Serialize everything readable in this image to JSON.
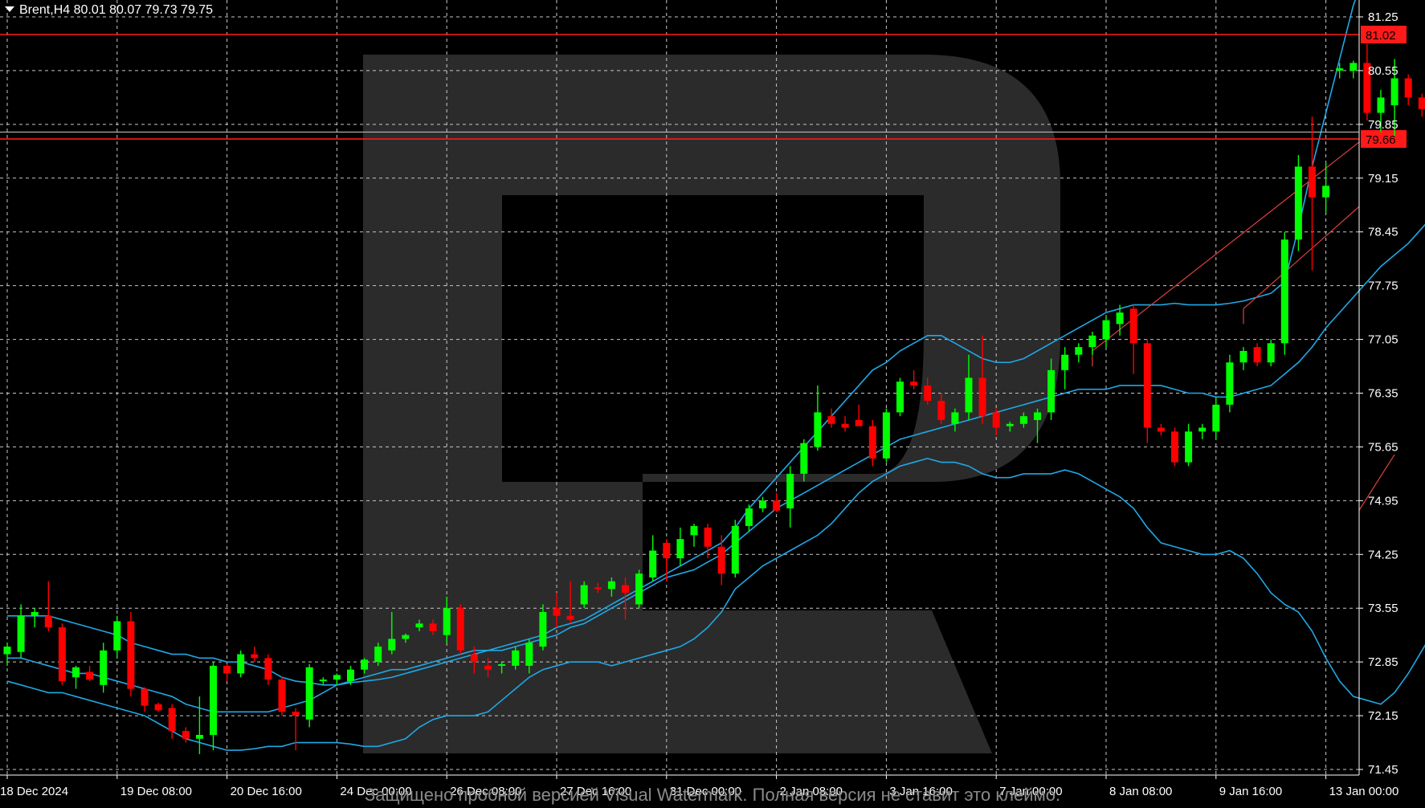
{
  "header": {
    "triangle_icon": "triangle-down-icon",
    "label": "Brent,H4  80.01 80.07 79.73 79.75"
  },
  "watermark": {
    "logo_icon": "r-logo-icon",
    "notice": "Защищено пробной версией Visual Watermark. Полная версия не ставит это клеймо."
  },
  "colors": {
    "background": "#000000",
    "grid": "#c8c8c8",
    "bull": "#00ff00",
    "bear": "#ff0000",
    "band": "#1fa8e6",
    "level": "#ff1a1a",
    "channel": "#e04040",
    "price_line": "#b8b8b8",
    "logo": "#333333"
  },
  "chart_data": {
    "type": "candlestick",
    "y_ticks": [
      "81.25",
      "80.55",
      "79.85",
      "79.15",
      "78.45",
      "77.75",
      "77.05",
      "76.35",
      "75.65",
      "74.95",
      "74.25",
      "73.55",
      "72.85",
      "72.15",
      "71.45"
    ],
    "ylim": [
      71.45,
      81.25
    ],
    "x_tick_labels": [
      "18 Dec 2024",
      "19 Dec 08:00",
      "20 Dec 16:00",
      "24 Dec 00:00",
      "26 Dec 08:00",
      "27 Dec 16:00",
      "31 Dec 00:00",
      "2 Jan 08:00",
      "3 Jan 16:00",
      "7 Jan 00:00",
      "8 Jan 08:00",
      "9 Jan 16:00",
      "13 Jan 00:00"
    ],
    "x_tick_bars": [
      0,
      8,
      16,
      24,
      32,
      40,
      48,
      56,
      64,
      72,
      80,
      88,
      96
    ],
    "price_levels": [
      {
        "label": "81.02",
        "value": 81.02
      },
      {
        "label": "79.66",
        "value": 79.66
      }
    ],
    "current_price": 79.75,
    "grid": true,
    "candles": [
      {
        "o": 72.95,
        "h": 73.1,
        "l": 72.8,
        "c": 73.05
      },
      {
        "o": 72.98,
        "h": 73.6,
        "l": 72.9,
        "c": 73.45
      },
      {
        "o": 73.45,
        "h": 73.55,
        "l": 73.3,
        "c": 73.5
      },
      {
        "o": 73.45,
        "h": 73.9,
        "l": 73.25,
        "c": 73.3
      },
      {
        "o": 73.3,
        "h": 73.35,
        "l": 72.55,
        "c": 72.6
      },
      {
        "o": 72.65,
        "h": 72.8,
        "l": 72.5,
        "c": 72.78
      },
      {
        "o": 72.72,
        "h": 72.8,
        "l": 72.6,
        "c": 72.62
      },
      {
        "o": 72.55,
        "h": 73.1,
        "l": 72.45,
        "c": 73.0
      },
      {
        "o": 73.0,
        "h": 73.45,
        "l": 72.9,
        "c": 73.38
      },
      {
        "o": 73.38,
        "h": 73.5,
        "l": 72.4,
        "c": 72.5
      },
      {
        "o": 72.5,
        "h": 72.52,
        "l": 72.2,
        "c": 72.28
      },
      {
        "o": 72.3,
        "h": 72.32,
        "l": 72.2,
        "c": 72.22
      },
      {
        "o": 72.25,
        "h": 72.3,
        "l": 71.85,
        "c": 71.95
      },
      {
        "o": 71.95,
        "h": 72.0,
        "l": 71.8,
        "c": 71.85
      },
      {
        "o": 71.85,
        "h": 72.4,
        "l": 71.65,
        "c": 71.9
      },
      {
        "o": 71.9,
        "h": 72.85,
        "l": 71.7,
        "c": 72.8
      },
      {
        "o": 72.8,
        "h": 72.82,
        "l": 72.6,
        "c": 72.7
      },
      {
        "o": 72.7,
        "h": 73.0,
        "l": 72.65,
        "c": 72.95
      },
      {
        "o": 72.95,
        "h": 73.05,
        "l": 72.85,
        "c": 72.9
      },
      {
        "o": 72.9,
        "h": 72.95,
        "l": 72.55,
        "c": 72.62
      },
      {
        "o": 72.62,
        "h": 72.66,
        "l": 72.15,
        "c": 72.2
      },
      {
        "o": 72.2,
        "h": 72.25,
        "l": 71.7,
        "c": 72.15
      },
      {
        "o": 72.1,
        "h": 72.82,
        "l": 72.0,
        "c": 72.78
      },
      {
        "o": 72.6,
        "h": 72.65,
        "l": 72.55,
        "c": 72.62
      },
      {
        "o": 72.62,
        "h": 72.7,
        "l": 72.55,
        "c": 72.68
      },
      {
        "o": 72.6,
        "h": 72.8,
        "l": 72.55,
        "c": 72.75
      },
      {
        "o": 72.75,
        "h": 72.9,
        "l": 72.7,
        "c": 72.88
      },
      {
        "o": 72.85,
        "h": 73.1,
        "l": 72.8,
        "c": 73.05
      },
      {
        "o": 73.0,
        "h": 73.5,
        "l": 72.95,
        "c": 73.15
      },
      {
        "o": 73.15,
        "h": 73.22,
        "l": 73.1,
        "c": 73.2
      },
      {
        "o": 73.3,
        "h": 73.4,
        "l": 73.25,
        "c": 73.35
      },
      {
        "o": 73.35,
        "h": 73.4,
        "l": 73.2,
        "c": 73.25
      },
      {
        "o": 73.2,
        "h": 73.7,
        "l": 73.1,
        "c": 73.55
      },
      {
        "o": 73.55,
        "h": 73.6,
        "l": 72.95,
        "c": 73.0
      },
      {
        "o": 72.95,
        "h": 73.05,
        "l": 72.7,
        "c": 72.85
      },
      {
        "o": 72.8,
        "h": 72.9,
        "l": 72.65,
        "c": 72.75
      },
      {
        "o": 72.8,
        "h": 72.85,
        "l": 72.7,
        "c": 72.82
      },
      {
        "o": 72.8,
        "h": 73.05,
        "l": 72.75,
        "c": 73.0
      },
      {
        "o": 72.8,
        "h": 73.15,
        "l": 72.7,
        "c": 73.1
      },
      {
        "o": 73.05,
        "h": 73.6,
        "l": 73.0,
        "c": 73.5
      },
      {
        "o": 73.55,
        "h": 73.75,
        "l": 73.3,
        "c": 73.45
      },
      {
        "o": 73.45,
        "h": 73.9,
        "l": 73.35,
        "c": 73.4
      },
      {
        "o": 73.6,
        "h": 73.9,
        "l": 73.55,
        "c": 73.85
      },
      {
        "o": 73.82,
        "h": 73.88,
        "l": 73.75,
        "c": 73.8
      },
      {
        "o": 73.8,
        "h": 73.95,
        "l": 73.7,
        "c": 73.9
      },
      {
        "o": 73.85,
        "h": 73.95,
        "l": 73.4,
        "c": 73.75
      },
      {
        "o": 73.6,
        "h": 74.05,
        "l": 73.55,
        "c": 74.0
      },
      {
        "o": 73.95,
        "h": 74.5,
        "l": 73.9,
        "c": 74.3
      },
      {
        "o": 74.4,
        "h": 74.45,
        "l": 73.9,
        "c": 74.2
      },
      {
        "o": 74.2,
        "h": 74.6,
        "l": 74.1,
        "c": 74.45
      },
      {
        "o": 74.5,
        "h": 74.65,
        "l": 74.35,
        "c": 74.62
      },
      {
        "o": 74.6,
        "h": 74.65,
        "l": 74.2,
        "c": 74.35
      },
      {
        "o": 74.35,
        "h": 74.5,
        "l": 73.85,
        "c": 74.0
      },
      {
        "o": 74.0,
        "h": 74.7,
        "l": 73.95,
        "c": 74.62
      },
      {
        "o": 74.62,
        "h": 74.9,
        "l": 74.55,
        "c": 74.85
      },
      {
        "o": 74.85,
        "h": 75.0,
        "l": 74.8,
        "c": 74.95
      },
      {
        "o": 74.95,
        "h": 75.05,
        "l": 74.8,
        "c": 74.82
      },
      {
        "o": 74.85,
        "h": 75.4,
        "l": 74.6,
        "c": 75.3
      },
      {
        "o": 75.3,
        "h": 75.75,
        "l": 75.2,
        "c": 75.7
      },
      {
        "o": 75.65,
        "h": 76.45,
        "l": 75.6,
        "c": 76.1
      },
      {
        "o": 76.05,
        "h": 76.15,
        "l": 75.9,
        "c": 75.95
      },
      {
        "o": 75.95,
        "h": 76.05,
        "l": 75.85,
        "c": 75.9
      },
      {
        "o": 76.0,
        "h": 76.2,
        "l": 75.95,
        "c": 75.92
      },
      {
        "o": 75.92,
        "h": 76.0,
        "l": 75.4,
        "c": 75.5
      },
      {
        "o": 75.5,
        "h": 76.15,
        "l": 75.45,
        "c": 76.1
      },
      {
        "o": 76.1,
        "h": 76.55,
        "l": 76.05,
        "c": 76.5
      },
      {
        "o": 76.5,
        "h": 76.65,
        "l": 76.4,
        "c": 76.45
      },
      {
        "o": 76.45,
        "h": 76.55,
        "l": 76.2,
        "c": 76.25
      },
      {
        "o": 76.25,
        "h": 76.35,
        "l": 75.95,
        "c": 76.0
      },
      {
        "o": 75.95,
        "h": 76.15,
        "l": 75.85,
        "c": 76.1
      },
      {
        "o": 76.1,
        "h": 76.85,
        "l": 76.0,
        "c": 76.55
      },
      {
        "o": 76.55,
        "h": 77.1,
        "l": 75.95,
        "c": 76.05
      },
      {
        "o": 76.1,
        "h": 76.15,
        "l": 75.8,
        "c": 75.9
      },
      {
        "o": 75.92,
        "h": 75.98,
        "l": 75.85,
        "c": 75.95
      },
      {
        "o": 75.95,
        "h": 76.1,
        "l": 75.9,
        "c": 76.05
      },
      {
        "o": 76.0,
        "h": 76.15,
        "l": 75.7,
        "c": 76.1
      },
      {
        "o": 76.1,
        "h": 76.8,
        "l": 76.0,
        "c": 76.65
      },
      {
        "o": 76.65,
        "h": 76.95,
        "l": 76.4,
        "c": 76.85
      },
      {
        "o": 76.85,
        "h": 77.0,
        "l": 76.75,
        "c": 76.95
      },
      {
        "o": 76.95,
        "h": 77.15,
        "l": 76.85,
        "c": 77.1
      },
      {
        "o": 77.05,
        "h": 77.35,
        "l": 76.95,
        "c": 77.3
      },
      {
        "o": 77.25,
        "h": 77.5,
        "l": 77.1,
        "c": 77.4
      },
      {
        "o": 77.45,
        "h": 77.5,
        "l": 76.6,
        "c": 77.0
      },
      {
        "o": 77.0,
        "h": 77.05,
        "l": 75.7,
        "c": 75.9
      },
      {
        "o": 75.9,
        "h": 75.95,
        "l": 75.8,
        "c": 75.85
      },
      {
        "o": 75.85,
        "h": 75.9,
        "l": 75.4,
        "c": 75.45
      },
      {
        "o": 75.45,
        "h": 75.95,
        "l": 75.4,
        "c": 75.85
      },
      {
        "o": 75.85,
        "h": 75.95,
        "l": 75.75,
        "c": 75.9
      },
      {
        "o": 75.85,
        "h": 76.3,
        "l": 75.75,
        "c": 76.2
      },
      {
        "o": 76.2,
        "h": 76.85,
        "l": 76.1,
        "c": 76.75
      },
      {
        "o": 76.75,
        "h": 76.95,
        "l": 76.65,
        "c": 76.9
      },
      {
        "o": 76.95,
        "h": 77.0,
        "l": 76.7,
        "c": 76.75
      },
      {
        "o": 76.75,
        "h": 77.05,
        "l": 76.7,
        "c": 77.0
      },
      {
        "o": 77.0,
        "h": 78.45,
        "l": 76.85,
        "c": 78.35
      },
      {
        "o": 78.35,
        "h": 79.45,
        "l": 78.2,
        "c": 79.3
      },
      {
        "o": 79.3,
        "h": 79.95,
        "l": 77.95,
        "c": 78.9
      },
      {
        "o": 78.9,
        "h": 79.35,
        "l": 78.7,
        "c": 79.05
      },
      {
        "o": 80.55,
        "h": 80.65,
        "l": 80.45,
        "c": 80.58
      },
      {
        "o": 80.55,
        "h": 80.68,
        "l": 80.45,
        "c": 80.65
      },
      {
        "o": 80.65,
        "h": 80.9,
        "l": 79.9,
        "c": 80.0
      },
      {
        "o": 80.0,
        "h": 80.3,
        "l": 79.75,
        "c": 80.2
      },
      {
        "o": 80.1,
        "h": 80.7,
        "l": 79.7,
        "c": 80.45
      },
      {
        "o": 80.45,
        "h": 80.5,
        "l": 80.1,
        "c": 80.2
      },
      {
        "o": 80.2,
        "h": 80.25,
        "l": 79.95,
        "c": 80.05
      },
      {
        "o": 80.01,
        "h": 80.07,
        "l": 79.73,
        "c": 79.75
      }
    ],
    "bollinger": {
      "upper": [
        73.45,
        73.45,
        73.45,
        73.45,
        73.4,
        73.35,
        73.3,
        73.25,
        73.2,
        73.1,
        73.05,
        73.0,
        72.95,
        72.95,
        72.9,
        72.9,
        72.85,
        72.85,
        72.8,
        72.75,
        72.65,
        72.6,
        72.58,
        72.55,
        72.55,
        72.58,
        72.6,
        72.62,
        72.65,
        72.7,
        72.75,
        72.8,
        72.85,
        72.9,
        72.95,
        73.0,
        73.05,
        73.1,
        73.15,
        73.2,
        73.3,
        73.35,
        73.4,
        73.5,
        73.6,
        73.7,
        73.8,
        73.9,
        74.0,
        74.1,
        74.2,
        74.3,
        74.4,
        74.6,
        74.85,
        75.05,
        75.25,
        75.45,
        75.65,
        75.85,
        76.05,
        76.25,
        76.45,
        76.65,
        76.75,
        76.9,
        77.0,
        77.1,
        77.1,
        77.0,
        76.9,
        76.8,
        76.75,
        76.75,
        76.8,
        76.9,
        77.0,
        77.1,
        77.2,
        77.3,
        77.4,
        77.45,
        77.5,
        77.5,
        77.5,
        77.52,
        77.5,
        77.5,
        77.5,
        77.52,
        77.55,
        77.6,
        77.65,
        77.8,
        78.5,
        79.3,
        80.0,
        80.7,
        81.4,
        81.9,
        82.4,
        82.9,
        83.3,
        83.6,
        83.8,
        84.0
      ],
      "middle": [
        72.9,
        72.9,
        72.85,
        72.8,
        72.75,
        72.7,
        72.7,
        72.65,
        72.6,
        72.55,
        72.5,
        72.45,
        72.4,
        72.3,
        72.25,
        72.2,
        72.2,
        72.2,
        72.2,
        72.2,
        72.25,
        72.3,
        72.35,
        72.45,
        72.55,
        72.6,
        72.65,
        72.7,
        72.75,
        72.75,
        72.8,
        72.85,
        72.9,
        72.95,
        73.0,
        73.0,
        73.0,
        73.05,
        73.1,
        73.15,
        73.2,
        73.3,
        73.35,
        73.45,
        73.55,
        73.65,
        73.75,
        73.85,
        73.95,
        74.0,
        74.05,
        74.15,
        74.25,
        74.4,
        74.55,
        74.7,
        74.85,
        74.95,
        75.05,
        75.15,
        75.25,
        75.35,
        75.45,
        75.55,
        75.65,
        75.75,
        75.8,
        75.85,
        75.9,
        75.95,
        76.0,
        76.05,
        76.1,
        76.15,
        76.2,
        76.25,
        76.3,
        76.35,
        76.4,
        76.4,
        76.4,
        76.45,
        76.45,
        76.45,
        76.45,
        76.4,
        76.35,
        76.35,
        76.3,
        76.3,
        76.35,
        76.4,
        76.45,
        76.6,
        76.75,
        76.95,
        77.2,
        77.4,
        77.6,
        77.8,
        78.0,
        78.15,
        78.3,
        78.5,
        78.7,
        78.9
      ],
      "lower": [
        72.6,
        72.55,
        72.5,
        72.45,
        72.45,
        72.4,
        72.35,
        72.3,
        72.25,
        72.2,
        72.15,
        72.05,
        71.95,
        71.85,
        71.8,
        71.75,
        71.7,
        71.7,
        71.72,
        71.75,
        71.75,
        71.8,
        71.8,
        71.8,
        71.8,
        71.78,
        71.75,
        71.75,
        71.8,
        71.85,
        72.0,
        72.1,
        72.15,
        72.15,
        72.15,
        72.2,
        72.35,
        72.5,
        72.65,
        72.75,
        72.8,
        72.85,
        72.85,
        72.85,
        72.8,
        72.85,
        72.9,
        72.95,
        73.0,
        73.05,
        73.15,
        73.3,
        73.5,
        73.8,
        73.95,
        74.1,
        74.2,
        74.3,
        74.4,
        74.5,
        74.65,
        74.85,
        75.05,
        75.2,
        75.3,
        75.4,
        75.45,
        75.5,
        75.45,
        75.45,
        75.4,
        75.3,
        75.25,
        75.25,
        75.3,
        75.3,
        75.3,
        75.35,
        75.3,
        75.2,
        75.1,
        75.0,
        74.85,
        74.6,
        74.4,
        74.35,
        74.3,
        74.25,
        74.25,
        74.3,
        74.2,
        74.0,
        73.75,
        73.6,
        73.5,
        73.25,
        72.9,
        72.6,
        72.4,
        72.35,
        72.3,
        72.45,
        72.7,
        73.0,
        73.3,
        73.5
      ]
    },
    "channels": [
      {
        "x1": 79,
        "y1": 76.9,
        "x2": 109,
        "y2": 81.1
      },
      {
        "x1": 90,
        "y1": 77.45,
        "x2": 109,
        "y2": 80.45
      },
      {
        "x1": 101,
        "y1": 75.55,
        "x2": 109,
        "y2": 77.8
      }
    ]
  }
}
